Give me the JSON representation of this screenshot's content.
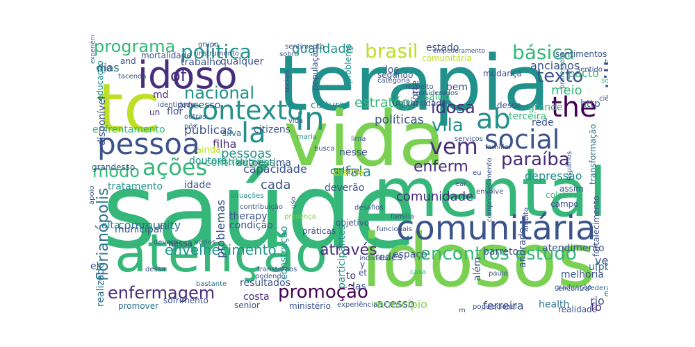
{
  "palette": {
    "yellow": "#bddf26",
    "lime": "#7ad151",
    "green": "#35b779",
    "teal": "#21918c",
    "blue": "#2c728e",
    "indigo": "#3b528b",
    "purple": "#472d7b",
    "darkpurple": "#440154"
  },
  "words": {
    "saude": "saúde",
    "terapia": "terapia",
    "mental": "mental",
    "idosos": "idosos",
    "vida": "vida",
    "tc": "tc",
    "atencao": "atenção",
    "comunitaria": "comunitária",
    "idoso": "idoso",
    "contexto": "contexto",
    "in": "in",
    "the": "the",
    "pessoa": "pessoa",
    "social": "social",
    "la": "la",
    "ab": "ab",
    "politica": "política",
    "programa": "programa",
    "basica": "básica",
    "brasil": "brasil",
    "texto": "texto",
    "nacional": "nacional",
    "of": "of",
    "acoes": "ações",
    "vem": "vem",
    "vila": "vila",
    "idosa": "idosa",
    "estrategia": "estratégia",
    "partilha": "partilha",
    "paraiba": "paraíba",
    "modo": "modo",
    "enferm": "enferm",
    "fala": "fala",
    "encontros_estudo": "encontros estudo",
    "envelhecimento": "envelhecimento",
    "atraves": "através",
    "enfermagem": "enfermagem",
    "promocao": "promoção",
    "pessoas": "pessoas",
    "qualidade": "qualidade",
    "meio": "meio",
    "md": "md",
    "florianopolis": "florianópolis",
    "comunidade": "comunidade",
    "cada": "cada",
    "capacidade": "capacidade",
    "filha": "filha",
    "depressao": "depressão",
    "community": "community",
    "acesso": "acesso",
    "ferreira": "ferreira",
    "health": "health",
    "rio": "rio",
    "fb": "fb",
    "publicas": "públicas",
    "politicas": "políticas",
    "cultura": "cultura",
    "idosa2": "ancianos",
    "pacto": "pacto",
    "http": "http",
    "grande": "grande",
    "rede": "rede",
    "vez": "vez",
    "en": "en",
    "ufpb": "ufpb",
    "municipio": "município",
    "costa": "costa",
    "senior": "senior",
    "las": "las",
    "to": "to",
    "et": "et",
    "y": "y",
    "redes": "redes",
    "espaco": "espaço",
    "resultados": "resultados",
    "nessa": "nessa",
    "municipal": "municipal",
    "alta": "alta",
    "el": "el",
    "realizado": "realizado",
    "problemas": "problemas",
    "therapy": "therapy",
    "condicao": "condição",
    "construcao": "construção",
    "participantes": "participantes",
    "tratamento": "tratamento",
    "idade": "idade",
    "estrategias": "estratégias",
    "autoestima": "autoestima",
    "contribuicoes": "contribuições",
    "enfrentamento": "enfrentamento",
    "dias": "dias",
    "mo": "mo",
    "educacao": "educação",
    "disponivel": "disponível",
    "trabalho": "trabalho",
    "processo": "processo",
    "mortalidade": "mortalidade",
    "qualquer": "qualquer",
    "flor": "flor",
    "un": "un",
    "los": "los",
    "online": "online",
    "nesse": "nesse",
    "citizens": "citizens",
    "silva": "silva",
    "deverao": "deverão",
    "diante": "diante",
    "terceira": "terceira",
    "norte": "norte",
    "bem": "bem",
    "salud": "salud",
    "universidade": "universidade",
    "estado": "estado",
    "comunitaria_small": "comunitária",
    "sentimentos": "sentimentos",
    "atendimento": "atendimento",
    "barreto": "barreto",
    "andrade": "andrade",
    "alem": "além",
    "fortalecimento": "fortalecimento",
    "transformacao": "transformação",
    "coletiva": "coletiva",
    "campo": "campo",
    "assim": "assim",
    "melhoria": "melhoria",
    "realidade": "realidade",
    "populacao": "população",
    "problema": "problema",
    "grandesso": "grandesso",
    "doutora": "doutora",
    "ainda": "ainda",
    "segundo": "segundo",
    "categoria": "categoria",
    "mudanca": "mudança",
    "and": "and",
    "desse": "desse",
    "objetivo": "objetivo",
    "praticas": "práticas",
    "desafios": "desafios",
    "podendo": "podendo",
    "ministerio": "ministério",
    "experiencia": "experiência",
    "promover": "promover",
    "sofrimento": "sofrimento",
    "populacional": "populacional",
    "paulo": "paulo",
    "servicos": "serviços",
    "familiar": "familiar",
    "busca": "busca",
    "maria": "maria",
    "transtornos": "transtornos",
    "bastante": "bastante",
    "federal": "federal",
    "graduacao": "graduação",
    "professora": "professora",
    "considerados": "considerados",
    "instrumento": "instrumento",
    "identidade": "identidade",
    "sentimento": "sentimento",
    "grupo": "grupo",
    "sobre": "sobre",
    "icc": "icc",
    "varios": "vários",
    "contribuicao": "contribuição",
    "individuo": "individuo",
    "familia": "família",
    "funcionais": "funcionais",
    "casa": "casa",
    "usuarios": "usuários",
    "solucoes": "soluções",
    "ciencias": "ciências",
    "deve": "devera",
    "apoio": "apoio",
    "todos": "todos",
    "situacoes": "situações",
    "vida_small": "vida",
    "presenca": "presença",
    "envolve": "envolve",
    "lima": "lima",
    "pos": "pós",
    "empoderamento": "empoderamento",
    "experiencias": "experiências",
    "tacenda": "tacenda",
    "encontra": "encontra",
    "ambito": "âmbito",
    "comprometimento": "comprometimento",
    "sociais": "sociais",
    "dessa": "dessa",
    "outras": "outras",
    "sentido": "sentido",
    "respeito": "respeito",
    "eu": "eu",
    "ear": "ear",
    "m": "m",
    "uso": "uso"
  }
}
